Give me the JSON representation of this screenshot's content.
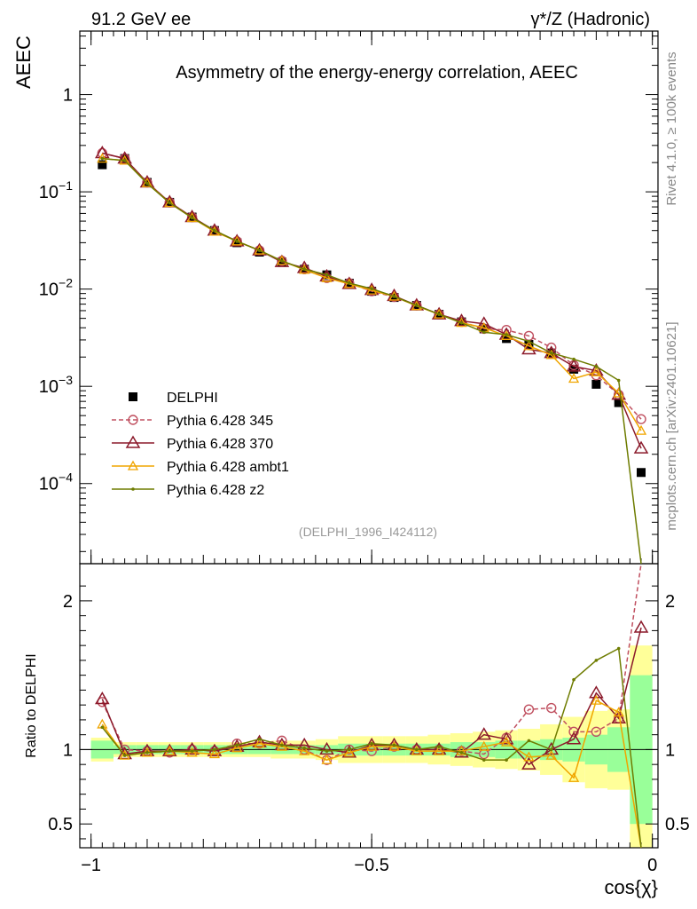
{
  "chart_data": [
    {
      "type": "line",
      "panel": "main",
      "title": "Asymmetry of the energy-energy correlation, AEEC",
      "top_left_label": "91.2 GeV ee",
      "top_right_label": "γ*/Z (Hadronic)",
      "ylabel": "AEEC",
      "yscale": "log",
      "ylim": [
        1.5e-05,
        4.5
      ],
      "xlim": [
        -1.02,
        0.01
      ],
      "y_tick_labels": [
        "1",
        "10^-1",
        "10^-2",
        "10^-3",
        "10^-4"
      ],
      "y_tick_values": [
        1,
        0.1,
        0.01,
        0.001,
        0.0001
      ],
      "side_label_top": "Rivet 4.1.0, ≥ 100k events",
      "side_label_bottom": "mcplots.cern.ch [arXiv:2401.10621]",
      "watermark": "(DELPHI_1996_I424112)",
      "x": [
        -0.98,
        -0.94,
        -0.9,
        -0.86,
        -0.82,
        -0.78,
        -0.74,
        -0.7,
        -0.66,
        -0.62,
        -0.58,
        -0.54,
        -0.5,
        -0.46,
        -0.42,
        -0.38,
        -0.34,
        -0.3,
        -0.26,
        -0.22,
        -0.18,
        -0.14,
        -0.1,
        -0.06,
        -0.02
      ],
      "series": [
        {
          "name": "DELPHI",
          "color": "#000000",
          "marker": "square",
          "values": [
            0.19,
            0.22,
            0.125,
            0.078,
            0.055,
            0.04,
            0.03,
            0.024,
            0.019,
            0.016,
            0.014,
            0.0115,
            0.0095,
            0.0082,
            0.0068,
            0.0055,
            0.0046,
            0.0039,
            0.0031,
            0.0027,
            0.0022,
            0.0015,
            0.00105,
            0.00068,
            0.00013
          ]
        },
        {
          "name": "Pythia 6.428 345",
          "color": "#c05060",
          "marker": "circle",
          "dash": true,
          "values": [
            0.25,
            0.22,
            0.125,
            0.078,
            0.055,
            0.04,
            0.031,
            0.025,
            0.0195,
            0.016,
            0.013,
            0.0115,
            0.0095,
            0.0083,
            0.0068,
            0.0055,
            0.0046,
            0.0039,
            0.0038,
            0.0033,
            0.0025,
            0.00165,
            0.0013,
            0.00082,
            0.00046
          ]
        },
        {
          "name": "Pythia 6.428 370",
          "color": "#8b1a2b",
          "marker": "triangle",
          "values": [
            0.25,
            0.22,
            0.125,
            0.078,
            0.055,
            0.04,
            0.031,
            0.025,
            0.019,
            0.0165,
            0.0135,
            0.0113,
            0.0098,
            0.0085,
            0.0068,
            0.0055,
            0.0047,
            0.0044,
            0.0034,
            0.0024,
            0.0022,
            0.0016,
            0.00145,
            0.00082,
            0.00023
          ]
        },
        {
          "name": "Pythia 6.428 ambt1",
          "color": "#f0a500",
          "marker": "triangle-small",
          "values": [
            0.22,
            0.21,
            0.123,
            0.077,
            0.054,
            0.039,
            0.031,
            0.025,
            0.0195,
            0.0158,
            0.013,
            0.0113,
            0.0097,
            0.0084,
            0.0067,
            0.0055,
            0.0045,
            0.004,
            0.0033,
            0.0026,
            0.0021,
            0.0012,
            0.0014,
            0.00085,
            0.00035
          ]
        },
        {
          "name": "Pythia 6.428 z2",
          "color": "#6e7c00",
          "marker": "dot",
          "values": [
            0.22,
            0.21,
            0.122,
            0.077,
            0.054,
            0.04,
            0.031,
            0.025,
            0.0195,
            0.016,
            0.014,
            0.0115,
            0.0101,
            0.0084,
            0.0068,
            0.0055,
            0.0045,
            0.0036,
            0.0034,
            0.0029,
            0.0022,
            0.0019,
            0.0016,
            0.00115,
            1.2e-05
          ]
        }
      ],
      "legend_position": "lower-left"
    },
    {
      "type": "line",
      "panel": "ratio",
      "ylabel": "Ratio to DELPHI",
      "xlabel": "cos{χ}",
      "ylim": [
        0.34,
        2.25
      ],
      "xlim": [
        -1.02,
        0.01
      ],
      "y_tick_values": [
        0.5,
        1,
        2
      ],
      "y_tick_labels": [
        "0.5",
        "1",
        "2"
      ],
      "x_tick_values": [
        -1,
        -0.5,
        0
      ],
      "x_tick_labels": [
        "−1",
        "−0.5",
        "0"
      ],
      "x": [
        -0.98,
        -0.94,
        -0.9,
        -0.86,
        -0.82,
        -0.78,
        -0.74,
        -0.7,
        -0.66,
        -0.62,
        -0.58,
        -0.54,
        -0.5,
        -0.46,
        -0.42,
        -0.38,
        -0.34,
        -0.3,
        -0.26,
        -0.22,
        -0.18,
        -0.14,
        -0.1,
        -0.06,
        -0.02
      ],
      "band_inner": [
        0.06,
        0.03,
        0.03,
        0.03,
        0.03,
        0.03,
        0.03,
        0.03,
        0.03,
        0.03,
        0.03,
        0.04,
        0.04,
        0.04,
        0.04,
        0.04,
        0.05,
        0.05,
        0.06,
        0.06,
        0.07,
        0.08,
        0.1,
        0.15,
        0.5
      ],
      "band_outer": [
        0.08,
        0.05,
        0.05,
        0.05,
        0.05,
        0.05,
        0.05,
        0.05,
        0.06,
        0.06,
        0.07,
        0.09,
        0.09,
        0.09,
        0.09,
        0.1,
        0.11,
        0.12,
        0.13,
        0.14,
        0.17,
        0.22,
        0.26,
        0.27,
        0.7
      ],
      "series": [
        {
          "name": "Pythia 6.428 345",
          "color": "#c05060",
          "values": [
            1.32,
            1.0,
            0.99,
            0.98,
            1.0,
            0.99,
            1.04,
            1.04,
            1.06,
            1.0,
            0.93,
            1.0,
            0.99,
            1.02,
            1.0,
            1.0,
            0.99,
            0.97,
            1.08,
            1.27,
            1.28,
            1.12,
            1.12,
            1.21,
            2.3
          ]
        },
        {
          "name": "Pythia 6.428 370",
          "color": "#8b1a2b",
          "values": [
            1.34,
            0.97,
            0.99,
            0.99,
            1.0,
            0.99,
            1.02,
            1.05,
            1.03,
            1.03,
            1.0,
            0.98,
            1.03,
            1.03,
            1.0,
            1.0,
            0.98,
            1.1,
            1.07,
            0.9,
            1.0,
            1.07,
            1.38,
            1.21,
            1.82
          ]
        },
        {
          "name": "Pythia 6.428 ambt1",
          "color": "#f0a500",
          "values": [
            1.17,
            0.96,
            0.98,
            0.99,
            0.98,
            0.97,
            1.01,
            1.04,
            1.02,
            0.99,
            0.93,
            0.98,
            1.02,
            1.02,
            0.99,
            0.99,
            0.99,
            1.02,
            1.05,
            0.95,
            0.96,
            0.81,
            1.33,
            1.25,
            0.34
          ]
        },
        {
          "name": "Pythia 6.428 z2",
          "color": "#6e7c00",
          "values": [
            1.15,
            0.96,
            0.98,
            0.99,
            0.99,
            1.0,
            1.03,
            1.07,
            1.03,
            1.01,
            0.99,
            1.0,
            1.04,
            1.03,
            1.0,
            1.02,
            0.98,
            0.93,
            0.93,
            1.06,
            1.0,
            1.47,
            1.6,
            1.68,
            0.34
          ]
        }
      ]
    }
  ]
}
